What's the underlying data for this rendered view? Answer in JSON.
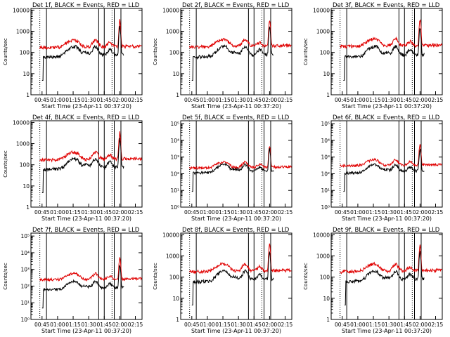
{
  "chart_data": [
    {
      "type": "line",
      "title": "Det 1f, BLACK = Events, RED = LLD",
      "xlabel": "Start Time (23-Apr-11 00:37:20)",
      "ylabel": "Counts/sec",
      "y_scale": "log",
      "ylim": [
        1,
        12000
      ],
      "ytick_style": "plain",
      "ytick_values": [
        1,
        10,
        100,
        1000,
        10000
      ],
      "ytick_labels": [
        "1",
        "10",
        "100",
        "1000",
        "10000"
      ],
      "xlim": [
        0,
        100
      ],
      "xticks": [
        10,
        24,
        38,
        52,
        66,
        80,
        94
      ],
      "xtick_labels": [
        "00:45",
        "01:00",
        "01:15",
        "01:30",
        "01:45",
        "02:00",
        "02:15"
      ],
      "vlines_dotted": [
        8,
        73
      ],
      "vlines_solid": [
        14,
        61,
        66,
        75,
        81
      ],
      "grid": false,
      "legend": "none",
      "series": [
        {
          "color": "#e00000",
          "style": "lld",
          "base": 170,
          "start": 8
        },
        {
          "color": "#000000",
          "style": "events",
          "base": 60,
          "start": 10
        }
      ]
    },
    {
      "type": "line",
      "title": "Det 2f, BLACK = Events, RED = LLD",
      "xlabel": "Start Time (23-Apr-11 00:37:20)",
      "ylabel": "Counts/sec",
      "y_scale": "log",
      "ylim": [
        1,
        12000
      ],
      "ytick_style": "plain",
      "ytick_values": [
        1,
        10,
        100,
        1000,
        10000
      ],
      "ytick_labels": [
        "1",
        "10",
        "100",
        "1000",
        "10000"
      ],
      "xlim": [
        0,
        100
      ],
      "xticks": [
        10,
        24,
        38,
        52,
        66,
        80,
        94
      ],
      "xtick_labels": [
        "00:45",
        "01:00",
        "01:15",
        "01:30",
        "01:45",
        "02:00",
        "02:15"
      ],
      "vlines_dotted": [
        8,
        73
      ],
      "vlines_solid": [
        14,
        61,
        66,
        75,
        81
      ],
      "grid": false,
      "legend": "none",
      "series": [
        {
          "color": "#e00000",
          "style": "lld",
          "base": 180,
          "start": 8
        },
        {
          "color": "#000000",
          "style": "events",
          "base": 60,
          "start": 10
        }
      ]
    },
    {
      "type": "line",
      "title": "Det 3f, BLACK = Events, RED = LLD",
      "xlabel": "Start Time (23-Apr-11 00:37:20)",
      "ylabel": "Counts/sec",
      "y_scale": "log",
      "ylim": [
        1,
        12000
      ],
      "ytick_style": "plain",
      "ytick_values": [
        1,
        10,
        100,
        1000,
        10000
      ],
      "ytick_labels": [
        "1",
        "10",
        "100",
        "1000",
        "10000"
      ],
      "xlim": [
        0,
        100
      ],
      "xticks": [
        10,
        24,
        38,
        52,
        66,
        80,
        94
      ],
      "xtick_labels": [
        "00:45",
        "01:00",
        "01:15",
        "01:30",
        "01:45",
        "02:00",
        "02:15"
      ],
      "vlines_dotted": [
        8,
        73
      ],
      "vlines_solid": [
        14,
        61,
        66,
        75,
        81
      ],
      "grid": false,
      "legend": "none",
      "series": [
        {
          "color": "#e00000",
          "style": "lld",
          "base": 190,
          "start": 8
        },
        {
          "color": "#000000",
          "style": "events",
          "base": 60,
          "start": 11
        }
      ]
    },
    {
      "type": "line",
      "title": "Det 4f, BLACK = Events, RED = LLD",
      "xlabel": "Start Time (23-Apr-11 00:37:20)",
      "ylabel": "Counts/sec",
      "y_scale": "log",
      "ylim": [
        1,
        12000
      ],
      "ytick_style": "plain",
      "ytick_values": [
        1,
        10,
        100,
        1000,
        10000
      ],
      "ytick_labels": [
        "1",
        "10",
        "100",
        "1000",
        "10000"
      ],
      "xlim": [
        0,
        100
      ],
      "xticks": [
        10,
        24,
        38,
        52,
        66,
        80,
        94
      ],
      "xtick_labels": [
        "00:45",
        "01:00",
        "01:15",
        "01:30",
        "01:45",
        "02:00",
        "02:15"
      ],
      "vlines_dotted": [
        8,
        73
      ],
      "vlines_solid": [
        14,
        61,
        66,
        75,
        81
      ],
      "grid": false,
      "legend": "none",
      "series": [
        {
          "color": "#e00000",
          "style": "lld",
          "base": 170,
          "start": 8
        },
        {
          "color": "#000000",
          "style": "events",
          "base": 60,
          "start": 10
        }
      ]
    },
    {
      "type": "line",
      "title": "Det 5f, BLACK = Events, RED = LLD",
      "xlabel": "Start Time (23-Apr-11 00:37:20)",
      "ylabel": "",
      "y_scale": "log",
      "ylim": [
        1,
        150000
      ],
      "ytick_style": "exp",
      "ytick_values": [
        1,
        10,
        100,
        1000,
        10000,
        100000
      ],
      "ytick_labels": [
        "10⁰",
        "10¹",
        "10²",
        "10³",
        "10⁴",
        "10⁵"
      ],
      "xlim": [
        0,
        100
      ],
      "xticks": [
        10,
        24,
        38,
        52,
        66,
        80,
        94
      ],
      "xtick_labels": [
        "00:45",
        "01:00",
        "01:15",
        "01:30",
        "01:45",
        "02:00",
        "02:15"
      ],
      "vlines_dotted": [
        8,
        73
      ],
      "vlines_solid": [
        14,
        61,
        66,
        75,
        81
      ],
      "grid": false,
      "legend": "none",
      "series": [
        {
          "color": "#e00000",
          "style": "lld",
          "base": 220,
          "start": 8
        },
        {
          "color": "#000000",
          "style": "events",
          "base": 110,
          "start": 10
        }
      ]
    },
    {
      "type": "line",
      "title": "Det 6f, BLACK = Events, RED = LLD",
      "xlabel": "Start Time (23-Apr-11 00:37:20)",
      "ylabel": "",
      "y_scale": "log",
      "ylim": [
        1,
        150000
      ],
      "ytick_style": "exp",
      "ytick_values": [
        1,
        10,
        100,
        1000,
        10000,
        100000
      ],
      "ytick_labels": [
        "10⁰",
        "10¹",
        "10²",
        "10³",
        "10⁴",
        "10⁵"
      ],
      "xlim": [
        0,
        100
      ],
      "xticks": [
        10,
        24,
        38,
        52,
        66,
        80,
        94
      ],
      "xtick_labels": [
        "00:45",
        "01:00",
        "01:15",
        "01:30",
        "01:45",
        "02:00",
        "02:15"
      ],
      "vlines_dotted": [
        8,
        73
      ],
      "vlines_solid": [
        14,
        61,
        66,
        75,
        81
      ],
      "grid": false,
      "legend": "none",
      "series": [
        {
          "color": "#e00000",
          "style": "lld",
          "base": 300,
          "start": 8
        },
        {
          "color": "#000000",
          "style": "events",
          "base": 110,
          "start": 11
        }
      ]
    },
    {
      "type": "line",
      "title": "Det 7f, BLACK = Events, RED = LLD",
      "xlabel": "Start Time (23-Apr-11 00:37:20)",
      "ylabel": "Counts/sec",
      "y_scale": "log",
      "ylim": [
        1,
        150000
      ],
      "ytick_style": "exp",
      "ytick_values": [
        1,
        10,
        100,
        1000,
        10000,
        100000
      ],
      "ytick_labels": [
        "10⁰",
        "10¹",
        "10²",
        "10³",
        "10⁴",
        "10⁵"
      ],
      "xlim": [
        0,
        100
      ],
      "xticks": [
        10,
        24,
        38,
        52,
        66,
        80,
        94
      ],
      "xtick_labels": [
        "00:45",
        "01:00",
        "01:15",
        "01:30",
        "01:45",
        "02:00",
        "02:15"
      ],
      "vlines_dotted": [
        8,
        73
      ],
      "vlines_solid": [
        14,
        61,
        66,
        75,
        81
      ],
      "grid": false,
      "legend": "none",
      "series": [
        {
          "color": "#e00000",
          "style": "lld",
          "base": 240,
          "start": 8
        },
        {
          "color": "#000000",
          "style": "events",
          "base": 60,
          "start": 10
        }
      ]
    },
    {
      "type": "line",
      "title": "Det 8f, BLACK = Events, RED = LLD",
      "xlabel": "Start Time (23-Apr-11 00:37:20)",
      "ylabel": "Counts/sec",
      "y_scale": "log",
      "ylim": [
        1,
        12000
      ],
      "ytick_style": "plain",
      "ytick_values": [
        1,
        10,
        100,
        1000,
        10000
      ],
      "ytick_labels": [
        "1",
        "10",
        "100",
        "1000",
        "10000"
      ],
      "xlim": [
        0,
        100
      ],
      "xticks": [
        10,
        24,
        38,
        52,
        66,
        80,
        94
      ],
      "xtick_labels": [
        "00:45",
        "01:00",
        "01:15",
        "01:30",
        "01:45",
        "02:00",
        "02:15"
      ],
      "vlines_dotted": [
        8,
        73
      ],
      "vlines_solid": [
        14,
        61,
        66,
        75,
        81
      ],
      "grid": false,
      "legend": "none",
      "series": [
        {
          "color": "#e00000",
          "style": "lld",
          "base": 180,
          "start": 8
        },
        {
          "color": "#000000",
          "style": "events",
          "base": 60,
          "start": 10
        }
      ]
    },
    {
      "type": "line",
      "title": "Det 9f, BLACK = Events, RED = LLD",
      "xlabel": "Start Time (23-Apr-11 00:37:20)",
      "ylabel": "Counts/sec",
      "y_scale": "log",
      "ylim": [
        1,
        12000
      ],
      "ytick_style": "plain",
      "ytick_values": [
        1,
        10,
        100,
        1000,
        10000
      ],
      "ytick_labels": [
        "1",
        "10",
        "100",
        "1000",
        "10000"
      ],
      "xlim": [
        0,
        100
      ],
      "xticks": [
        10,
        24,
        38,
        52,
        66,
        80,
        94
      ],
      "xtick_labels": [
        "00:45",
        "01:00",
        "01:15",
        "01:30",
        "01:45",
        "02:00",
        "02:15"
      ],
      "vlines_dotted": [
        8,
        73
      ],
      "vlines_solid": [
        14,
        61,
        66,
        75,
        81
      ],
      "grid": false,
      "legend": "none",
      "series": [
        {
          "color": "#e00000",
          "style": "lld",
          "base": 180,
          "start": 8
        },
        {
          "color": "#000000",
          "style": "events",
          "base": 60,
          "start": 12
        }
      ]
    }
  ]
}
